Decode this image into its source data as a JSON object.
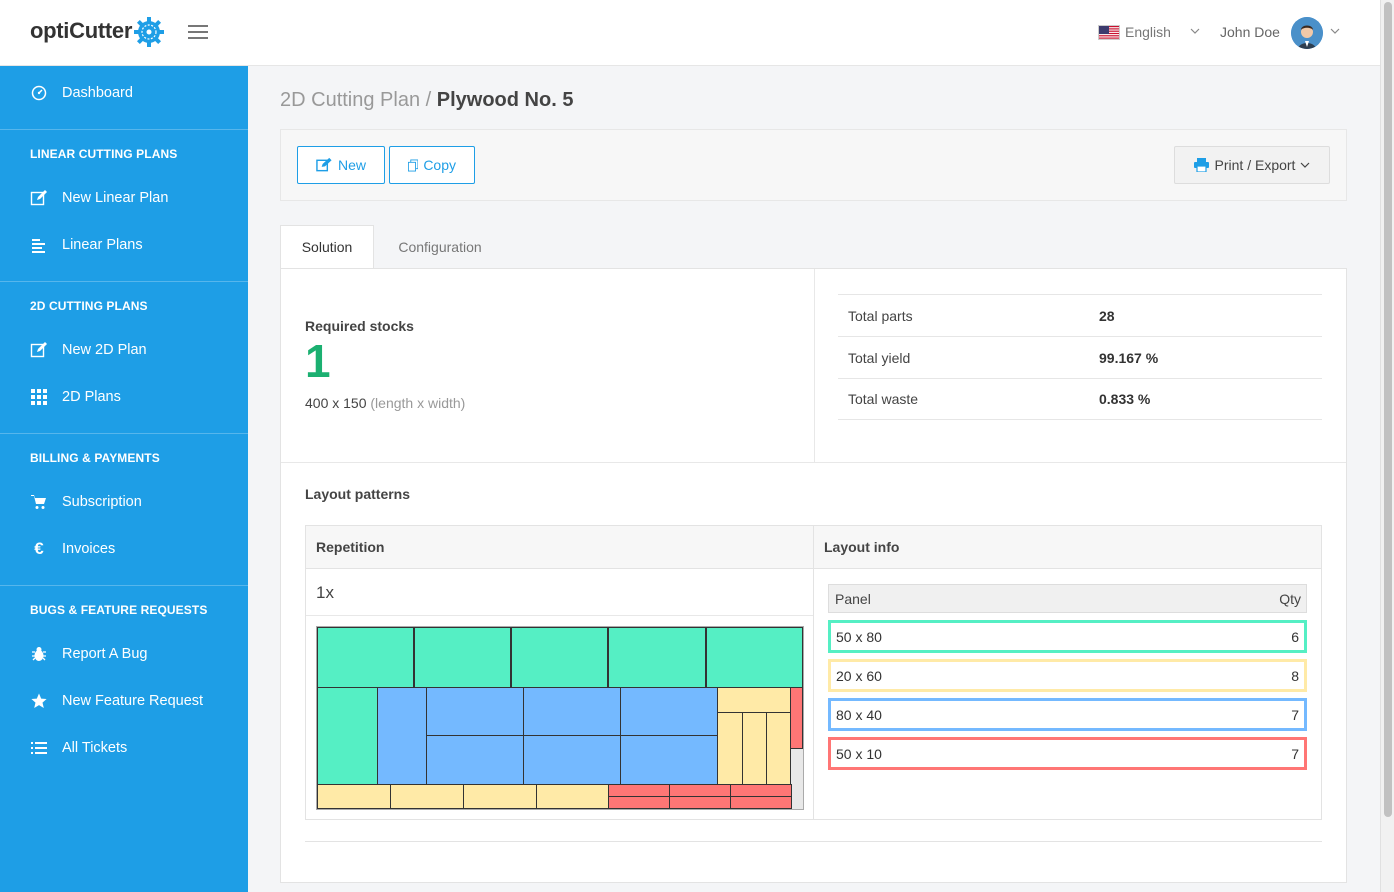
{
  "app": {
    "name": "optiCutter"
  },
  "header": {
    "language": "English",
    "user_name": "John Doe"
  },
  "sidebar": {
    "dashboard": "Dashboard",
    "sections": [
      {
        "title": "LINEAR CUTTING PLANS",
        "items": [
          "New Linear Plan",
          "Linear Plans"
        ]
      },
      {
        "title": "2D CUTTING PLANS",
        "items": [
          "New 2D Plan",
          "2D Plans"
        ]
      },
      {
        "title": "BILLING & PAYMENTS",
        "items": [
          "Subscription",
          "Invoices"
        ]
      },
      {
        "title": "BUGS & FEATURE REQUESTS",
        "items": [
          "Report A Bug",
          "New Feature Request",
          "All Tickets"
        ]
      }
    ]
  },
  "breadcrumb": {
    "parent": "2D Cutting Plan /",
    "current": "Plywood No. 5"
  },
  "toolbar": {
    "new_label": "New",
    "copy_label": "Copy",
    "print_label": "Print / Export"
  },
  "tabs": {
    "solution": "Solution",
    "configuration": "Configuration"
  },
  "summary": {
    "required_label": "Required stocks",
    "required_count": "1",
    "stock_dims": "400 x 150",
    "stock_dims_hint": "(length x width)",
    "stats": [
      {
        "label": "Total parts",
        "value": "28"
      },
      {
        "label": "Total yield",
        "value": "99.167 %"
      },
      {
        "label": "Total waste",
        "value": "0.833 %"
      }
    ]
  },
  "layout_patterns": {
    "title": "Layout patterns",
    "col_repetition": "Repetition",
    "col_info": "Layout info",
    "repetition": "1x",
    "info_header": {
      "panel": "Panel",
      "qty": "Qty"
    },
    "panels": [
      {
        "size": "50 x 80",
        "qty": "6",
        "color": "#55efc4"
      },
      {
        "size": "20 x 60",
        "qty": "8",
        "color": "#ffeaa7"
      },
      {
        "size": "80 x 40",
        "qty": "7",
        "color": "#74b9ff"
      },
      {
        "size": "50 x 10",
        "qty": "7",
        "color": "#ff7675"
      }
    ]
  },
  "colors": {
    "sidebar": "#1e9ee6",
    "accent": "#1e9ee6",
    "green": "#1bb071"
  },
  "icons": {
    "sidebar": [
      "dashboard-icon",
      "edit-icon",
      "list-icon",
      "edit-icon",
      "grid-icon",
      "cart-icon",
      "euro-icon",
      "bug-icon",
      "star-icon",
      "list-icon"
    ]
  }
}
